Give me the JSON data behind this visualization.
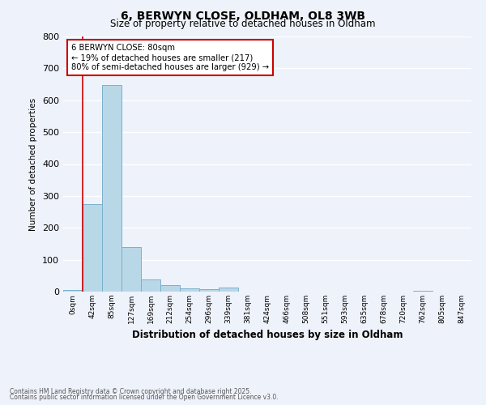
{
  "title": "6, BERWYN CLOSE, OLDHAM, OL8 3WB",
  "subtitle": "Size of property relative to detached houses in Oldham",
  "bar_values": [
    5,
    275,
    648,
    140,
    37,
    20,
    10,
    8,
    12,
    0,
    0,
    0,
    0,
    0,
    0,
    0,
    0,
    0,
    3,
    0,
    0
  ],
  "bin_labels": [
    "0sqm",
    "42sqm",
    "85sqm",
    "127sqm",
    "169sqm",
    "212sqm",
    "254sqm",
    "296sqm",
    "339sqm",
    "381sqm",
    "424sqm",
    "466sqm",
    "508sqm",
    "551sqm",
    "593sqm",
    "635sqm",
    "678sqm",
    "720sqm",
    "762sqm",
    "805sqm",
    "847sqm"
  ],
  "bar_color": "#b8d8e8",
  "bar_edge_color": "#7ab0cc",
  "background_color": "#eef2fa",
  "grid_color": "#ffffff",
  "ylabel": "Number of detached properties",
  "xlabel": "Distribution of detached houses by size in Oldham",
  "ylim": [
    0,
    800
  ],
  "yticks": [
    0,
    100,
    200,
    300,
    400,
    500,
    600,
    700,
    800
  ],
  "vline_x": 1.0,
  "vline_color": "#cc0000",
  "annotation_title": "6 BERWYN CLOSE: 80sqm",
  "annotation_line1": "← 19% of detached houses are smaller (217)",
  "annotation_line2": "80% of semi-detached houses are larger (929) →",
  "annotation_box_color": "#cc0000",
  "footer_line1": "Contains HM Land Registry data © Crown copyright and database right 2025.",
  "footer_line2": "Contains public sector information licensed under the Open Government Licence v3.0."
}
